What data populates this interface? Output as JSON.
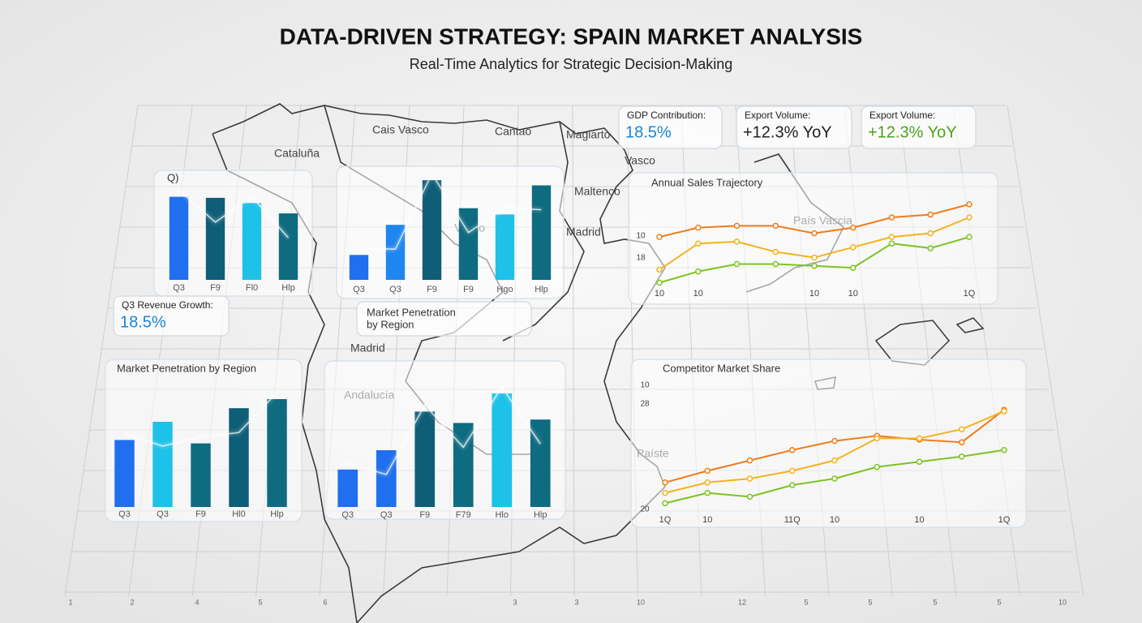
{
  "header": {
    "title": "DATA-DRIVEN STRATEGY: SPAIN MARKET ANALYSIS",
    "subtitle": "Real-Time Analytics for Strategic Decision-Making"
  },
  "map_labels": [
    "Cais Vasco",
    "Cataluña",
    "Cantao",
    "Magiarto",
    "Vasco",
    "Maltenco",
    "Madrid",
    "Vasco",
    "Madrid",
    "Andalucía",
    "País Vascia",
    "Paíste"
  ],
  "grid_labels": [
    "1",
    "2",
    "4",
    "5",
    "6",
    "3",
    "3",
    "10",
    "12",
    "5",
    "5",
    "5",
    "5",
    "10"
  ],
  "kpis": [
    {
      "label": "Q3 Revenue Growth:",
      "value": "18.5%",
      "color": "#1a86d6"
    },
    {
      "label": "GDP Contribution:",
      "value": "18.5%",
      "color": "#1a86d6"
    },
    {
      "label": "Export Volume:",
      "value": "+12.3% YoY",
      "color": "#222222"
    },
    {
      "label": "Export Volume:",
      "value": "+12.3% YoY",
      "color": "#4aa31a"
    }
  ],
  "callout": [
    "Market Penetration",
    "by Region"
  ],
  "chart_data": [
    {
      "type": "bar",
      "title": "Q)",
      "categories": [
        "Q3",
        "F9",
        "Fl0",
        "Hlp"
      ],
      "values": [
        80,
        79,
        74,
        64
      ],
      "colors": [
        "#1f6fee",
        "#0f5e77",
        "#1ec1e8",
        "#0f6b80"
      ],
      "ylim": [
        0,
        100
      ]
    },
    {
      "type": "bar",
      "categories": [
        "Q3",
        "Q3",
        "F9",
        "F9",
        "Hgo",
        "Hlp"
      ],
      "values": [
        24,
        53,
        96,
        69,
        63,
        91
      ],
      "colors": [
        "#1f6fee",
        "#1f86f0",
        "#0f5e77",
        "#0f6b80",
        "#1ec1e8",
        "#0f6b80"
      ],
      "ylim": [
        0,
        100
      ]
    },
    {
      "type": "bar",
      "title": "Market Penetration by Region",
      "categories": [
        "Q3",
        "Q3",
        "F9",
        "Hl0",
        "Hlp"
      ],
      "values": [
        59,
        75,
        56,
        87,
        95
      ],
      "colors": [
        "#1f6fee",
        "#1ec1e8",
        "#0f6b80",
        "#0f5e77",
        "#0f6b80"
      ],
      "ylim": [
        0,
        100
      ]
    },
    {
      "type": "bar",
      "categories": [
        "Q3",
        "Q3",
        "F9",
        "F79",
        "Hlo",
        "Hlp"
      ],
      "values": [
        33,
        50,
        84,
        74,
        100,
        77
      ],
      "colors": [
        "#1f6fee",
        "#1f6fee",
        "#0f5e77",
        "#0f6b80",
        "#1ec1e8",
        "#0f6b80"
      ],
      "ylim": [
        0,
        100
      ]
    },
    {
      "type": "line",
      "title": "Annual Sales Trajectory",
      "categories": [
        "10",
        "10",
        null,
        null,
        "10",
        "10",
        null,
        null,
        "1Q"
      ],
      "y_labels": [
        "10",
        "18"
      ],
      "ylim": [
        0,
        100
      ],
      "series": [
        {
          "color": "#f07c1a",
          "values": [
            59,
            69,
            71,
            71,
            63,
            69,
            80,
            83,
            94
          ]
        },
        {
          "color": "#f4b21c",
          "values": [
            24,
            52,
            54,
            43,
            37,
            48,
            59,
            63,
            80
          ]
        },
        {
          "color": "#7cc41e",
          "values": [
            10,
            22,
            30,
            30,
            28,
            26,
            52,
            47,
            59
          ]
        }
      ]
    },
    {
      "type": "line",
      "title": "Competitor Market Share",
      "categories": [
        "1Q",
        "10",
        null,
        "11Q",
        "10",
        null,
        "10",
        null,
        "1Q"
      ],
      "y_labels": [
        "10",
        "28",
        "20"
      ],
      "ylim": [
        0,
        100
      ],
      "series": [
        {
          "color": "#f07c1a",
          "values": [
            22,
            31,
            39,
            47,
            54,
            58,
            55,
            53,
            78
          ]
        },
        {
          "color": "#f4b21c",
          "values": [
            14,
            22,
            25,
            31,
            39,
            56,
            56,
            63,
            77
          ]
        },
        {
          "color": "#7cc41e",
          "values": [
            6,
            14,
            11,
            20,
            25,
            34,
            38,
            42,
            47
          ]
        }
      ]
    }
  ]
}
